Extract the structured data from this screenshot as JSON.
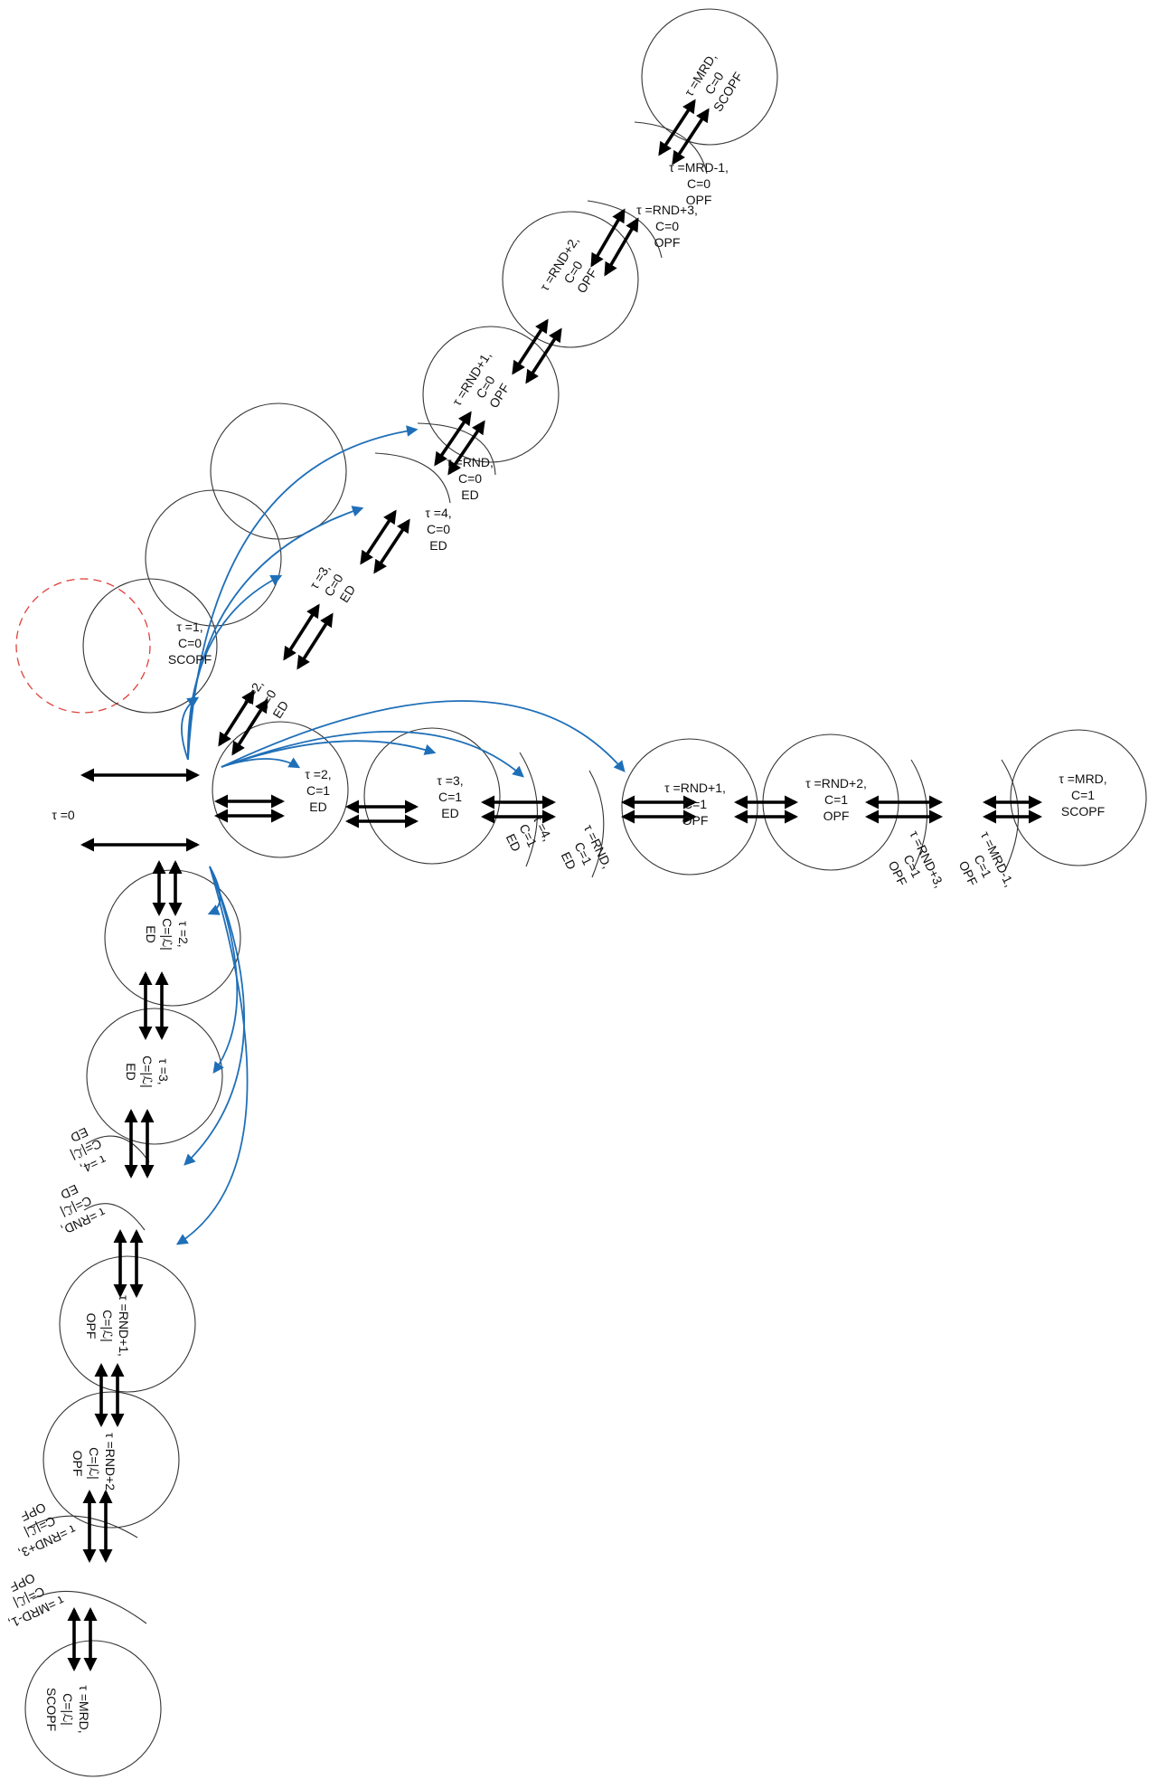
{
  "colors": {
    "node_stroke": "#333333",
    "initial_stroke": "#e0403a",
    "arrow_black": "#000000",
    "arrow_blue": "#1f6fb8"
  },
  "initial_state": {
    "lines": [
      "τ =0"
    ]
  },
  "hub_state": {
    "lines": [
      "τ =1,",
      "C=0",
      "SCOPF"
    ]
  },
  "branch_c0": [
    {
      "lines": [
        "τ =2,",
        "C=0",
        "ED"
      ]
    },
    {
      "lines": [
        "τ =3,",
        "C=0",
        "ED"
      ]
    },
    {
      "lines": [
        "τ =4,",
        "C=0",
        "ED"
      ]
    },
    {
      "lines": [
        "τ =RND,",
        "C=0",
        "ED"
      ]
    },
    {
      "lines": [
        "τ =RND+1,",
        "C=0",
        "OPF"
      ]
    },
    {
      "lines": [
        "τ =RND+2,",
        "C=0",
        "OPF"
      ]
    },
    {
      "lines": [
        "τ =RND+3,",
        "C=0",
        "OPF"
      ]
    },
    {
      "lines": [
        "τ =MRD-1,",
        "C=0",
        "OPF"
      ]
    },
    {
      "lines": [
        "τ =MRD,",
        "C=0",
        "SCOPF"
      ]
    }
  ],
  "branch_c1": [
    {
      "lines": [
        "τ =2,",
        "C=1",
        "ED"
      ]
    },
    {
      "lines": [
        "τ =3,",
        "C=1",
        "ED"
      ]
    },
    {
      "lines": [
        "τ =4,",
        "C=1",
        "ED"
      ]
    },
    {
      "lines": [
        "τ =RND,",
        "C=1",
        "ED"
      ]
    },
    {
      "lines": [
        "τ =RND+1,",
        "C=1",
        "OPF"
      ]
    },
    {
      "lines": [
        "τ =RND+2,",
        "C=1",
        "OPF"
      ]
    },
    {
      "lines": [
        "τ =RND+3,",
        "C=1",
        "OPF"
      ]
    },
    {
      "lines": [
        "τ =MRD-1,",
        "C=1",
        "OPF"
      ]
    },
    {
      "lines": [
        "τ =MRD,",
        "C=1",
        "SCOPF"
      ]
    }
  ],
  "branch_cl": [
    {
      "lines": [
        "τ =2,",
        "C=|ℒ|",
        "ED"
      ]
    },
    {
      "lines": [
        "τ =3,",
        "C=|ℒ|",
        "ED"
      ]
    },
    {
      "lines": [
        "τ =4,",
        "C=|ℒ|",
        "ED"
      ]
    },
    {
      "lines": [
        "τ =RND,",
        "C=|ℒ|",
        "ED"
      ]
    },
    {
      "lines": [
        "τ =RND+1,",
        "C=|ℒ|",
        "OPF"
      ]
    },
    {
      "lines": [
        "τ =RND+2,",
        "C=|ℒ|",
        "OPF"
      ]
    },
    {
      "lines": [
        "τ =RND+3,",
        "C=|ℒ|",
        "OPF"
      ]
    },
    {
      "lines": [
        "τ =MRD-1,",
        "C=|ℒ|",
        "OPF"
      ]
    },
    {
      "lines": [
        "τ =MRD,",
        "C=|ℒ|",
        "SCOPF"
      ]
    }
  ]
}
